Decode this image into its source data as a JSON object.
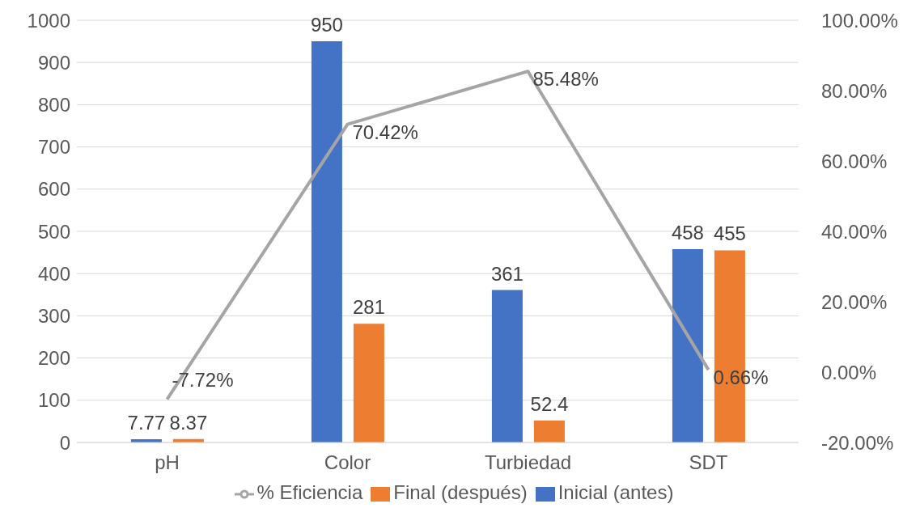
{
  "chart_data": {
    "type": "bar",
    "categories": [
      "pH",
      "Color",
      "Turbiedad",
      "SDT"
    ],
    "series": [
      {
        "name": "Inicial (antes)",
        "color": "#4472c4",
        "values": [
          7.77,
          950,
          361,
          458
        ],
        "value_labels": [
          "7.77",
          "950",
          "361",
          "458"
        ]
      },
      {
        "name": "Final (después)",
        "color": "#ed7d31",
        "values": [
          8.37,
          281,
          52.4,
          455
        ],
        "value_labels": [
          "8.37",
          "281",
          "52.4",
          "455"
        ]
      },
      {
        "name": "% Eficiencia",
        "type": "line",
        "axis": "y2",
        "color": "#a5a5a5",
        "values": [
          -7.72,
          70.42,
          85.48,
          0.66
        ],
        "value_labels": [
          "-7.72%",
          "70.42%",
          "85.48%",
          "0.66%"
        ]
      }
    ],
    "ylim": [
      0,
      1000
    ],
    "yticks": [
      0,
      100,
      200,
      300,
      400,
      500,
      600,
      700,
      800,
      900,
      1000
    ],
    "y2lim": [
      -20,
      100
    ],
    "y2ticks": [
      {
        "value": -20,
        "label": "-20.00%"
      },
      {
        "value": 0,
        "label": "0.00%"
      },
      {
        "value": 20,
        "label": "20.00%"
      },
      {
        "value": 40,
        "label": "40.00%"
      },
      {
        "value": 60,
        "label": "60.00%"
      },
      {
        "value": 80,
        "label": "80.00%"
      },
      {
        "value": 100,
        "label": "100.00%"
      }
    ],
    "grid": "y",
    "legend": "bottom",
    "marker": "none",
    "line_style": "solid"
  }
}
